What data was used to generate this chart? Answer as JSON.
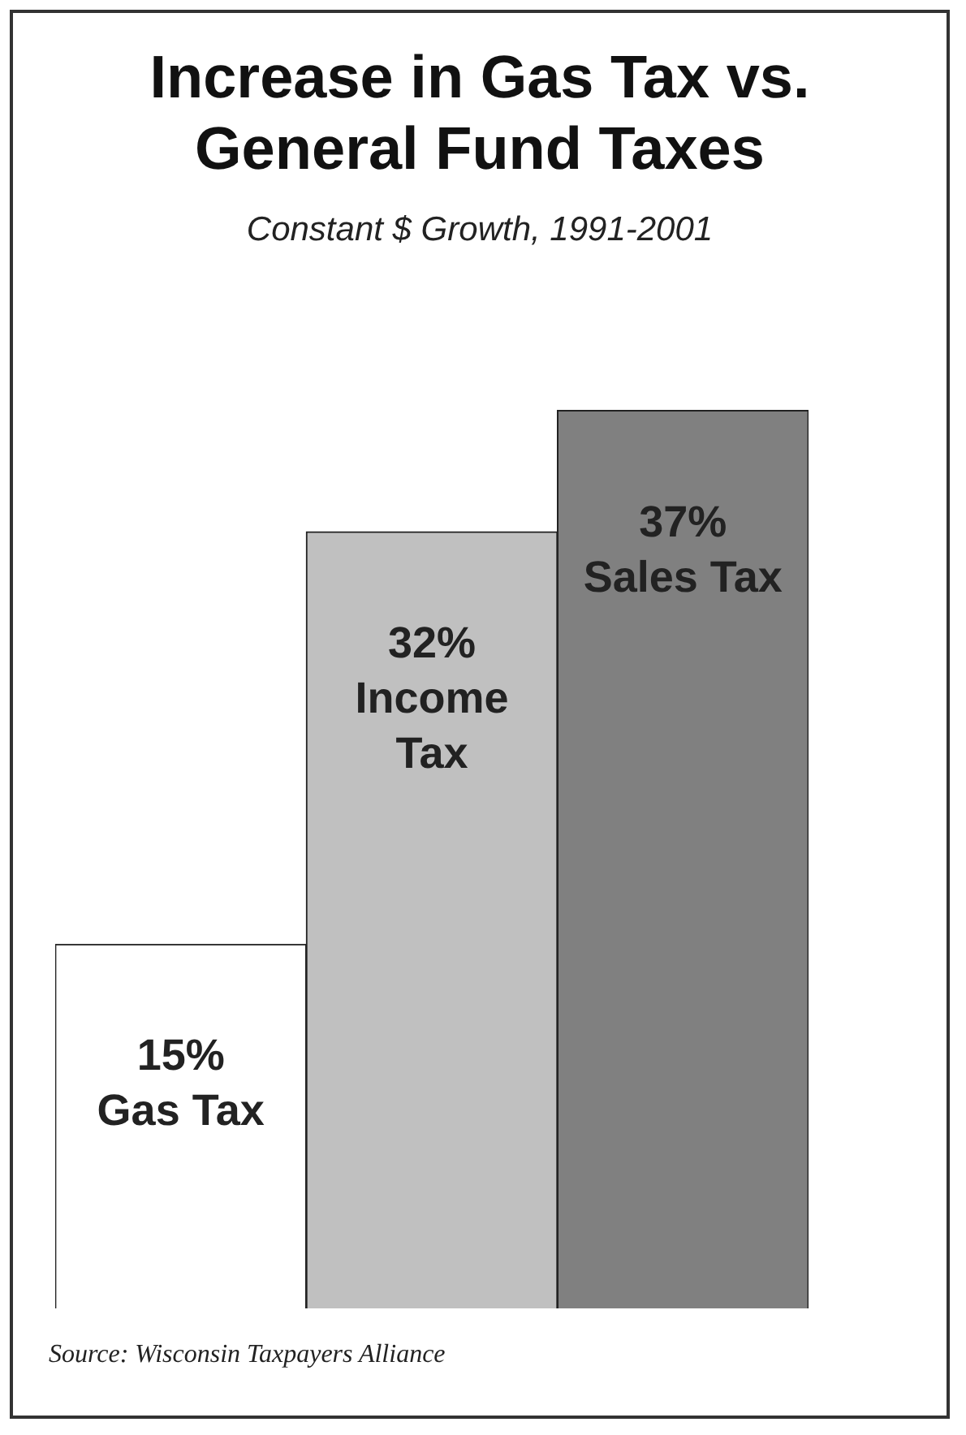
{
  "chart_data": {
    "type": "bar",
    "title": "Increase in Gas Tax vs. General Fund Taxes",
    "subtitle": "Constant $ Growth, 1991-2001",
    "categories": [
      "Gas Tax",
      "Income Tax",
      "Sales Tax"
    ],
    "values": [
      15,
      32,
      37
    ],
    "colors": [
      "#ffffff",
      "#c0c0c0",
      "#808080"
    ],
    "value_labels": [
      "15%",
      "32%",
      "37%"
    ],
    "annotations": [
      "Source: Wisconsin Taxpayers Alliance"
    ]
  }
}
